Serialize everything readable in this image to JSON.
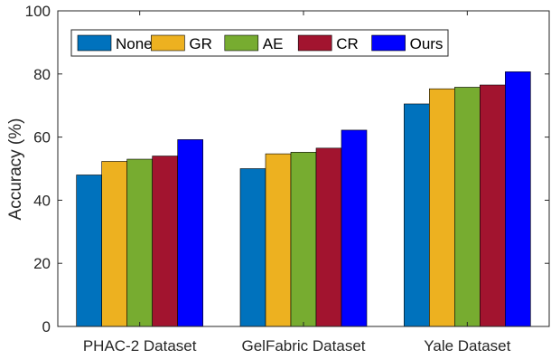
{
  "chart_data": {
    "type": "bar",
    "title": "",
    "xlabel": "",
    "ylabel": "Accuracy (%)",
    "ylim": [
      0,
      100
    ],
    "yticks": [
      0,
      20,
      40,
      60,
      80,
      100
    ],
    "grid": false,
    "legend_position": "top-left",
    "legend_orientation": "horizontal",
    "categories": [
      "PHAC-2 Dataset",
      "GelFabric Dataset",
      "Yale Dataset"
    ],
    "series": [
      {
        "name": "None",
        "color": "#0072BD",
        "values": [
          48.0,
          50.0,
          70.5
        ]
      },
      {
        "name": "GR",
        "color": "#EDB120",
        "values": [
          52.3,
          54.7,
          75.3
        ]
      },
      {
        "name": "AE",
        "color": "#77AC30",
        "values": [
          53.0,
          55.2,
          75.8
        ]
      },
      {
        "name": "CR",
        "color": "#A2142F",
        "values": [
          54.0,
          56.5,
          76.5
        ]
      },
      {
        "name": "Ours",
        "color": "#0000FF",
        "values": [
          59.2,
          62.2,
          80.7
        ]
      }
    ]
  }
}
